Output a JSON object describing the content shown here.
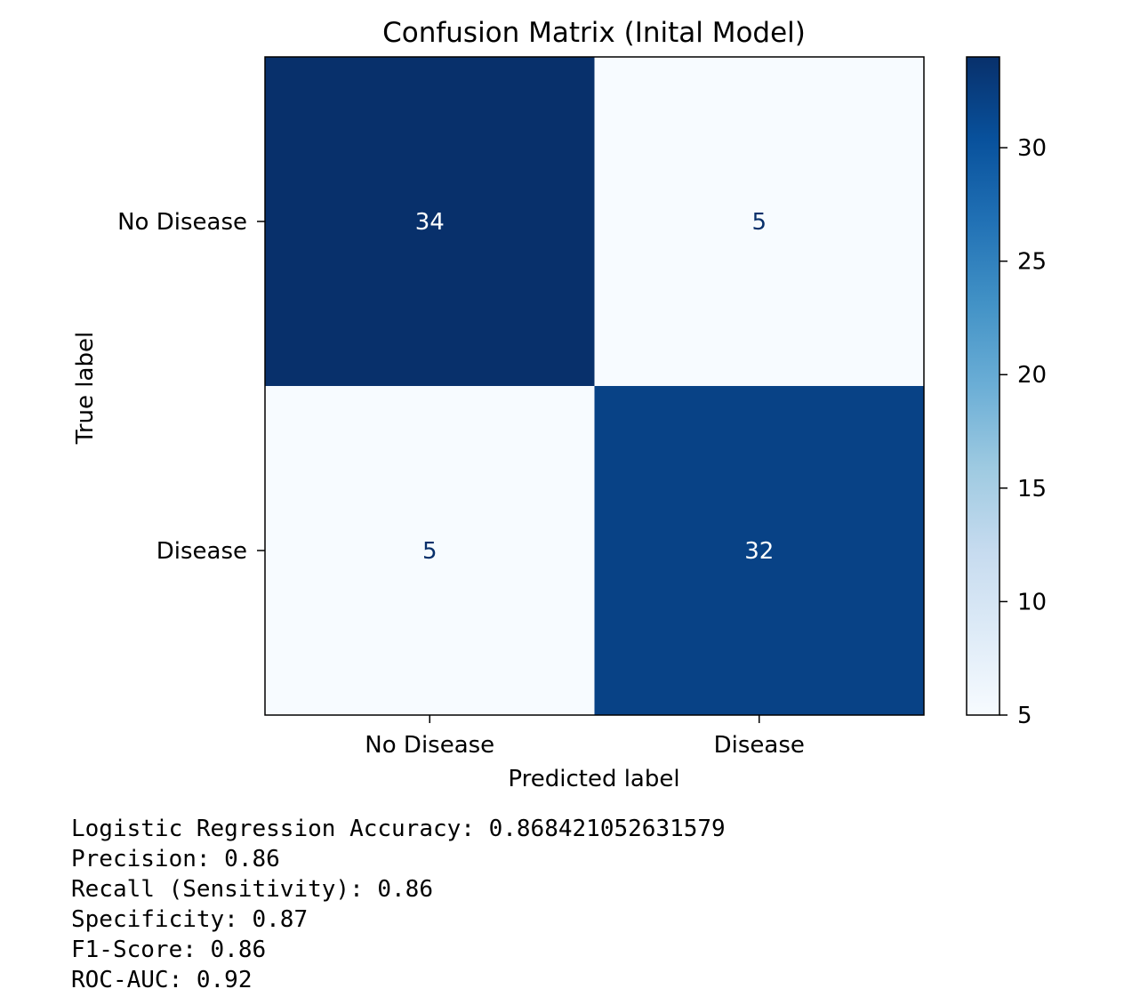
{
  "chart_data": {
    "type": "heatmap",
    "title": "Confusion Matrix (Inital Model)",
    "xlabel": "Predicted label",
    "ylabel": "True label",
    "x_categories": [
      "No Disease",
      "Disease"
    ],
    "y_categories": [
      "No Disease",
      "Disease"
    ],
    "values": [
      [
        34,
        5
      ],
      [
        5,
        32
      ]
    ],
    "colormap": "Blues",
    "colorbar": {
      "min": 5,
      "max": 34,
      "ticks": [
        5,
        10,
        15,
        20,
        25,
        30
      ]
    },
    "colors": {
      "low": "#f7fbff",
      "high": "#08306b",
      "text_dark": "#08306b",
      "text_light": "#ffffff"
    }
  },
  "output_lines": [
    "Logistic Regression Accuracy: 0.868421052631579",
    "Precision: 0.86",
    "Recall (Sensitivity): 0.86",
    "Specificity: 0.87",
    "F1-Score: 0.86",
    "ROC-AUC: 0.92"
  ]
}
